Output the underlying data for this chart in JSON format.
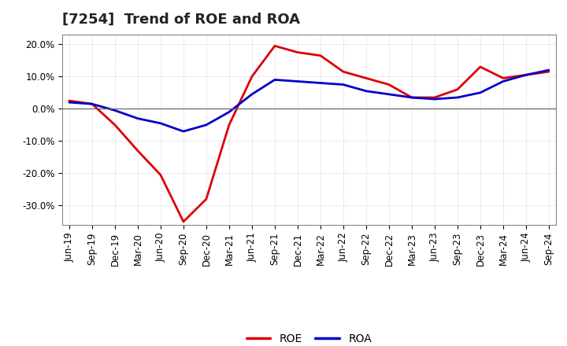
{
  "title": "[7254]  Trend of ROE and ROA",
  "x_labels": [
    "Jun-19",
    "Sep-19",
    "Dec-19",
    "Mar-20",
    "Jun-20",
    "Sep-20",
    "Dec-20",
    "Mar-21",
    "Jun-21",
    "Sep-21",
    "Dec-21",
    "Mar-22",
    "Jun-22",
    "Sep-22",
    "Dec-22",
    "Mar-23",
    "Jun-23",
    "Sep-23",
    "Dec-23",
    "Mar-24",
    "Jun-24",
    "Sep-24"
  ],
  "ROE": [
    2.5,
    1.5,
    -5.0,
    -13.0,
    -20.5,
    -35.0,
    -28.0,
    -5.0,
    10.0,
    19.5,
    17.5,
    16.5,
    11.5,
    9.5,
    7.5,
    3.5,
    3.5,
    6.0,
    13.0,
    9.5,
    10.5,
    11.5
  ],
  "ROA": [
    2.0,
    1.5,
    -0.5,
    -3.0,
    -4.5,
    -7.0,
    -5.0,
    -1.0,
    4.5,
    9.0,
    8.5,
    8.0,
    7.5,
    5.5,
    4.5,
    3.5,
    3.0,
    3.5,
    5.0,
    8.5,
    10.5,
    12.0
  ],
  "ROE_color": "#dd0000",
  "ROA_color": "#0000cc",
  "ylim": [
    -36,
    23
  ],
  "yticks": [
    -30,
    -20,
    -10,
    0,
    10,
    20
  ],
  "ytick_labels": [
    "-30.0%",
    "-20.0%",
    "-10.0%",
    "0.0%",
    "10.0%",
    "20.0%"
  ],
  "background_color": "#ffffff",
  "plot_bg_color": "#ffffff",
  "grid_color": "#bbbbbb",
  "line_width": 2.0,
  "title_fontsize": 13,
  "tick_fontsize": 8.5,
  "legend_fontsize": 10
}
